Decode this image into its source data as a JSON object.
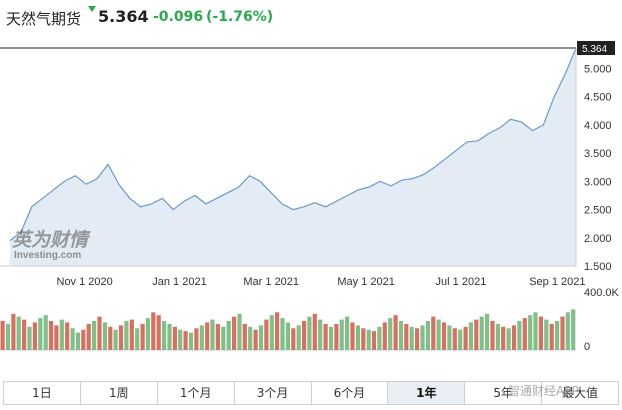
{
  "header": {
    "title": "天然气期货",
    "price": "5.364",
    "change": "-0.096",
    "change_pct": "(-1.76%)",
    "change_color": "#2aa84a"
  },
  "watermark": {
    "cn": "英为财情",
    "en": "Investing.com",
    "app": "智通财经APP"
  },
  "tabs": [
    {
      "label": "1日",
      "active": false
    },
    {
      "label": "1周",
      "active": false
    },
    {
      "label": "1个月",
      "active": false
    },
    {
      "label": "3个月",
      "active": false
    },
    {
      "label": "6个月",
      "active": false
    },
    {
      "label": "1年",
      "active": true
    },
    {
      "label": "5年",
      "active": false
    },
    {
      "label": "最大值",
      "active": false
    }
  ],
  "chart_data": {
    "type": "area",
    "x_ticks": [
      "Nov 1 2020",
      "Jan 1 2021",
      "Mar 1 2021",
      "May 1 2021",
      "Jul 1 2021",
      "Sep 1 2021"
    ],
    "y_ticks": [
      "1.500",
      "2.000",
      "2.500",
      "3.000",
      "3.500",
      "4.000",
      "4.500",
      "5.000"
    ],
    "ylim": [
      1.5,
      5.364
    ],
    "last_value_label": "5.364",
    "line_color": "#6b9ac8",
    "fill_color": "#e3ecf4",
    "x": [
      "2020-09-14",
      "2020-09-21",
      "2020-09-28",
      "2020-10-05",
      "2020-10-12",
      "2020-10-19",
      "2020-10-26",
      "2020-11-02",
      "2020-11-09",
      "2020-11-16",
      "2020-11-23",
      "2020-11-30",
      "2020-12-07",
      "2020-12-14",
      "2020-12-21",
      "2020-12-28",
      "2021-01-04",
      "2021-01-11",
      "2021-01-18",
      "2021-01-25",
      "2021-02-01",
      "2021-02-08",
      "2021-02-15",
      "2021-02-22",
      "2021-03-01",
      "2021-03-08",
      "2021-03-15",
      "2021-03-22",
      "2021-03-29",
      "2021-04-05",
      "2021-04-12",
      "2021-04-19",
      "2021-04-26",
      "2021-05-03",
      "2021-05-10",
      "2021-05-17",
      "2021-05-24",
      "2021-05-31",
      "2021-06-07",
      "2021-06-14",
      "2021-06-21",
      "2021-06-28",
      "2021-07-05",
      "2021-07-12",
      "2021-07-19",
      "2021-07-26",
      "2021-08-02",
      "2021-08-09",
      "2021-08-16",
      "2021-08-23",
      "2021-08-30",
      "2021-09-06",
      "2021-09-13"
    ],
    "values": [
      1.95,
      2.1,
      2.55,
      2.7,
      2.85,
      3.0,
      3.1,
      2.95,
      3.05,
      3.3,
      2.95,
      2.7,
      2.55,
      2.6,
      2.7,
      2.5,
      2.65,
      2.75,
      2.6,
      2.7,
      2.8,
      2.9,
      3.1,
      3.0,
      2.8,
      2.6,
      2.5,
      2.55,
      2.62,
      2.55,
      2.65,
      2.75,
      2.85,
      2.9,
      3.0,
      2.92,
      3.02,
      3.05,
      3.12,
      3.25,
      3.4,
      3.55,
      3.7,
      3.72,
      3.85,
      3.95,
      4.1,
      4.05,
      3.9,
      4.0,
      4.5,
      4.9,
      5.364
    ],
    "volume_axis": [
      "400.0K",
      "0"
    ],
    "volume_max": 400000,
    "volume": [
      [
        200000,
        "r"
      ],
      [
        180000,
        "g"
      ],
      [
        250000,
        "r"
      ],
      [
        230000,
        "g"
      ],
      [
        210000,
        "r"
      ],
      [
        160000,
        "g"
      ],
      [
        190000,
        "r"
      ],
      [
        220000,
        "g"
      ],
      [
        240000,
        "g"
      ],
      [
        200000,
        "r"
      ],
      [
        170000,
        "r"
      ],
      [
        210000,
        "g"
      ],
      [
        190000,
        "r"
      ],
      [
        150000,
        "g"
      ],
      [
        120000,
        "g"
      ],
      [
        140000,
        "r"
      ],
      [
        180000,
        "r"
      ],
      [
        200000,
        "g"
      ],
      [
        230000,
        "r"
      ],
      [
        190000,
        "g"
      ],
      [
        160000,
        "r"
      ],
      [
        140000,
        "g"
      ],
      [
        170000,
        "r"
      ],
      [
        200000,
        "g"
      ],
      [
        210000,
        "r"
      ],
      [
        150000,
        "g"
      ],
      [
        180000,
        "r"
      ],
      [
        220000,
        "g"
      ],
      [
        260000,
        "r"
      ],
      [
        240000,
        "r"
      ],
      [
        200000,
        "g"
      ],
      [
        180000,
        "g"
      ],
      [
        160000,
        "r"
      ],
      [
        140000,
        "g"
      ],
      [
        130000,
        "r"
      ],
      [
        120000,
        "g"
      ],
      [
        150000,
        "r"
      ],
      [
        170000,
        "g"
      ],
      [
        190000,
        "r"
      ],
      [
        210000,
        "g"
      ],
      [
        180000,
        "r"
      ],
      [
        160000,
        "g"
      ],
      [
        200000,
        "g"
      ],
      [
        230000,
        "r"
      ],
      [
        250000,
        "g"
      ],
      [
        180000,
        "r"
      ],
      [
        160000,
        "g"
      ],
      [
        140000,
        "r"
      ],
      [
        170000,
        "g"
      ],
      [
        210000,
        "r"
      ],
      [
        240000,
        "g"
      ],
      [
        260000,
        "r"
      ],
      [
        220000,
        "g"
      ],
      [
        190000,
        "g"
      ],
      [
        150000,
        "r"
      ],
      [
        170000,
        "g"
      ],
      [
        200000,
        "r"
      ],
      [
        230000,
        "g"
      ],
      [
        250000,
        "r"
      ],
      [
        210000,
        "g"
      ],
      [
        180000,
        "r"
      ],
      [
        160000,
        "g"
      ],
      [
        180000,
        "r"
      ],
      [
        210000,
        "g"
      ],
      [
        230000,
        "g"
      ],
      [
        190000,
        "r"
      ],
      [
        170000,
        "g"
      ],
      [
        150000,
        "r"
      ],
      [
        140000,
        "g"
      ],
      [
        130000,
        "r"
      ],
      [
        160000,
        "g"
      ],
      [
        190000,
        "r"
      ],
      [
        220000,
        "g"
      ],
      [
        240000,
        "r"
      ],
      [
        200000,
        "g"
      ],
      [
        180000,
        "r"
      ],
      [
        160000,
        "g"
      ],
      [
        150000,
        "r"
      ],
      [
        170000,
        "g"
      ],
      [
        200000,
        "g"
      ],
      [
        230000,
        "r"
      ],
      [
        210000,
        "g"
      ],
      [
        190000,
        "r"
      ],
      [
        170000,
        "g"
      ],
      [
        150000,
        "r"
      ],
      [
        140000,
        "g"
      ],
      [
        160000,
        "r"
      ],
      [
        190000,
        "g"
      ],
      [
        210000,
        "r"
      ],
      [
        230000,
        "g"
      ],
      [
        250000,
        "g"
      ],
      [
        200000,
        "r"
      ],
      [
        180000,
        "g"
      ],
      [
        160000,
        "r"
      ],
      [
        150000,
        "g"
      ],
      [
        170000,
        "r"
      ],
      [
        200000,
        "g"
      ],
      [
        220000,
        "r"
      ],
      [
        240000,
        "g"
      ],
      [
        260000,
        "g"
      ],
      [
        230000,
        "r"
      ],
      [
        210000,
        "g"
      ],
      [
        180000,
        "r"
      ],
      [
        200000,
        "g"
      ],
      [
        230000,
        "r"
      ],
      [
        260000,
        "g"
      ],
      [
        280000,
        "g"
      ]
    ]
  }
}
